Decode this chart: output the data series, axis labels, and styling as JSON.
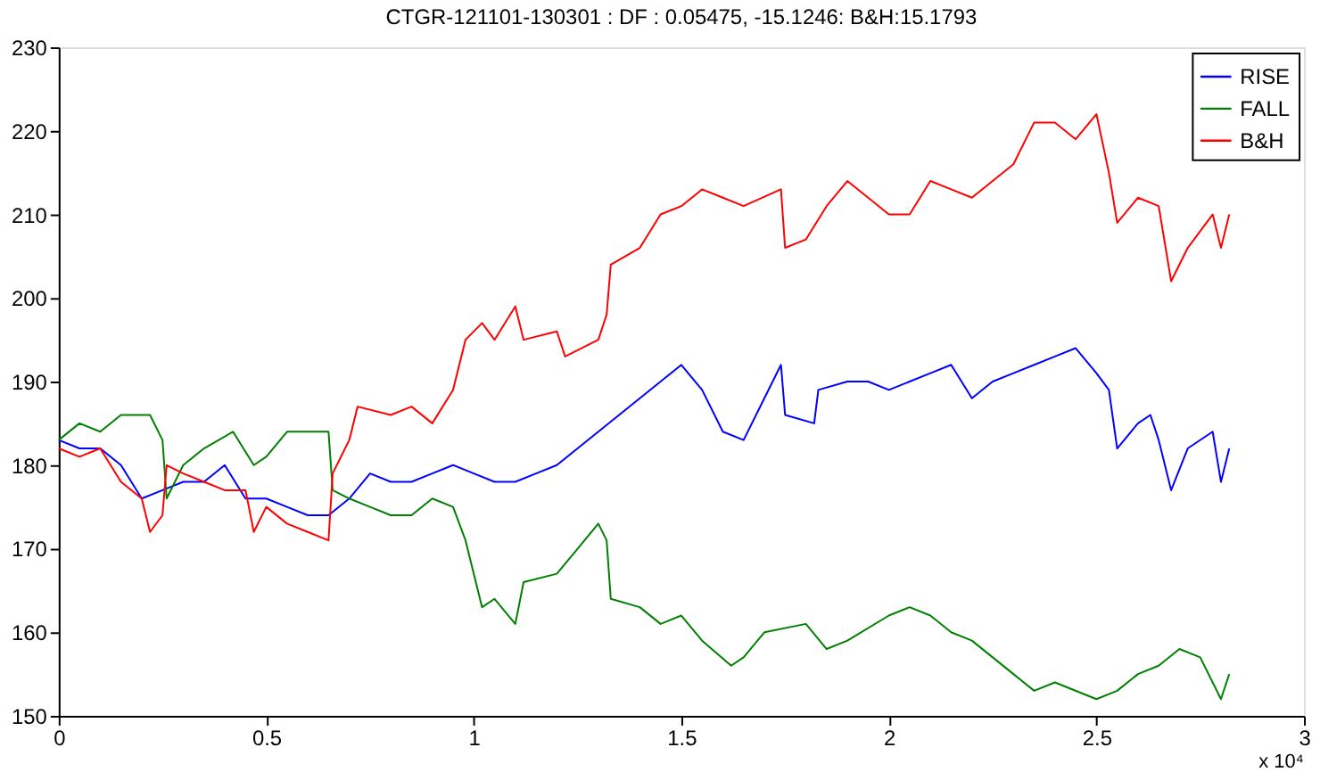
{
  "chart_data": {
    "type": "line",
    "title": "CTGR-121101-130301 : DF : 0.05475, -15.1246: B&H:15.1793",
    "xlim": [
      0,
      3
    ],
    "xticks": [
      0,
      0.5,
      1,
      1.5,
      2,
      2.5,
      3
    ],
    "ylim": [
      150,
      230
    ],
    "yticks": [
      150,
      160,
      170,
      180,
      190,
      200,
      210,
      220,
      230
    ],
    "grid": false,
    "legend": "top right",
    "line_style": "solid",
    "marker": "none",
    "annotations": [
      "x 10⁴"
    ],
    "series": [
      {
        "name": "RISE",
        "color": "#0000ff",
        "x": [
          0,
          0.05,
          0.1,
          0.15,
          0.2,
          0.25,
          0.3,
          0.35,
          0.4,
          0.45,
          0.5,
          0.55,
          0.6,
          0.65,
          0.7,
          0.75,
          0.8,
          0.85,
          0.9,
          0.95,
          1.0,
          1.05,
          1.1,
          1.15,
          1.2,
          1.25,
          1.3,
          1.35,
          1.4,
          1.45,
          1.5,
          1.55,
          1.6,
          1.65,
          1.7,
          1.74,
          1.75,
          1.82,
          1.83,
          1.9,
          1.95,
          2.0,
          2.05,
          2.1,
          2.15,
          2.2,
          2.25,
          2.3,
          2.35,
          2.4,
          2.45,
          2.5,
          2.53,
          2.55,
          2.6,
          2.63,
          2.65,
          2.68,
          2.72,
          2.78,
          2.8,
          2.82
        ],
        "values": [
          183,
          182,
          182,
          180,
          176,
          177,
          178,
          178,
          180,
          176,
          176,
          175,
          174,
          174,
          176,
          179,
          178,
          178,
          179,
          180,
          179,
          178,
          178,
          179,
          180,
          182,
          184,
          186,
          188,
          190,
          192,
          189,
          184,
          183,
          188,
          192,
          186,
          185,
          189,
          190,
          190,
          189,
          190,
          191,
          192,
          188,
          190,
          191,
          192,
          193,
          194,
          191,
          189,
          182,
          185,
          186,
          183,
          177,
          182,
          184,
          178,
          182
        ]
      },
      {
        "name": "FALL",
        "color": "#008000",
        "x": [
          0,
          0.05,
          0.1,
          0.15,
          0.22,
          0.25,
          0.26,
          0.3,
          0.35,
          0.42,
          0.47,
          0.5,
          0.55,
          0.62,
          0.65,
          0.66,
          0.7,
          0.75,
          0.8,
          0.85,
          0.9,
          0.95,
          0.98,
          1.0,
          1.02,
          1.05,
          1.1,
          1.12,
          1.2,
          1.25,
          1.3,
          1.32,
          1.33,
          1.4,
          1.45,
          1.5,
          1.55,
          1.62,
          1.65,
          1.7,
          1.8,
          1.85,
          1.9,
          2.0,
          2.05,
          2.1,
          2.15,
          2.2,
          2.25,
          2.3,
          2.35,
          2.4,
          2.5,
          2.55,
          2.6,
          2.65,
          2.7,
          2.75,
          2.8,
          2.82
        ],
        "values": [
          183,
          185,
          184,
          186,
          186,
          183,
          176,
          180,
          182,
          184,
          180,
          181,
          184,
          184,
          184,
          177,
          176,
          175,
          174,
          174,
          176,
          175,
          171,
          167,
          163,
          164,
          161,
          166,
          167,
          170,
          173,
          171,
          164,
          163,
          161,
          162,
          159,
          156,
          157,
          160,
          161,
          158,
          159,
          162,
          163,
          162,
          160,
          159,
          157,
          155,
          153,
          154,
          152,
          153,
          155,
          156,
          158,
          157,
          152,
          155
        ]
      },
      {
        "name": "B&H",
        "color": "#ff0000",
        "x": [
          0,
          0.05,
          0.1,
          0.15,
          0.2,
          0.22,
          0.25,
          0.26,
          0.3,
          0.35,
          0.4,
          0.45,
          0.47,
          0.5,
          0.55,
          0.6,
          0.65,
          0.66,
          0.7,
          0.72,
          0.8,
          0.85,
          0.9,
          0.95,
          0.98,
          1.02,
          1.05,
          1.1,
          1.12,
          1.2,
          1.22,
          1.3,
          1.32,
          1.33,
          1.4,
          1.45,
          1.5,
          1.55,
          1.6,
          1.65,
          1.74,
          1.75,
          1.8,
          1.85,
          1.9,
          1.95,
          2.0,
          2.05,
          2.1,
          2.15,
          2.2,
          2.25,
          2.3,
          2.35,
          2.4,
          2.45,
          2.5,
          2.53,
          2.55,
          2.6,
          2.65,
          2.68,
          2.72,
          2.78,
          2.8,
          2.82
        ],
        "values": [
          182,
          181,
          182,
          178,
          176,
          172,
          174,
          180,
          179,
          178,
          177,
          177,
          172,
          175,
          173,
          172,
          171,
          179,
          183,
          187,
          186,
          187,
          185,
          189,
          195,
          197,
          195,
          199,
          195,
          196,
          193,
          195,
          198,
          204,
          206,
          210,
          211,
          213,
          212,
          211,
          213,
          206,
          207,
          211,
          214,
          212,
          210,
          210,
          214,
          213,
          212,
          214,
          216,
          221,
          221,
          219,
          222,
          215,
          209,
          212,
          211,
          202,
          206,
          210,
          206,
          210
        ]
      }
    ]
  }
}
